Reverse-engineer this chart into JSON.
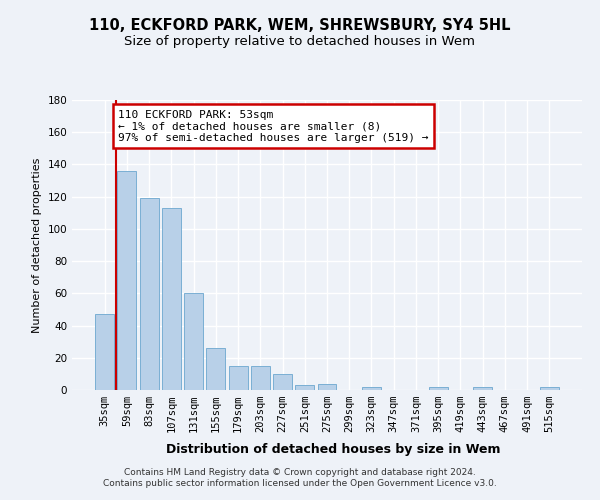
{
  "title": "110, ECKFORD PARK, WEM, SHREWSBURY, SY4 5HL",
  "subtitle": "Size of property relative to detached houses in Wem",
  "xlabel": "Distribution of detached houses by size in Wem",
  "ylabel": "Number of detached properties",
  "bar_labels": [
    "35sqm",
    "59sqm",
    "83sqm",
    "107sqm",
    "131sqm",
    "155sqm",
    "179sqm",
    "203sqm",
    "227sqm",
    "251sqm",
    "275sqm",
    "299sqm",
    "323sqm",
    "347sqm",
    "371sqm",
    "395sqm",
    "419sqm",
    "443sqm",
    "467sqm",
    "491sqm",
    "515sqm"
  ],
  "bar_values": [
    47,
    136,
    119,
    113,
    60,
    26,
    15,
    15,
    10,
    3,
    4,
    0,
    2,
    0,
    0,
    2,
    0,
    2,
    0,
    0,
    2
  ],
  "bar_color": "#b8d0e8",
  "bar_edge_color": "#7aafd4",
  "ylim": [
    0,
    180
  ],
  "yticks": [
    0,
    20,
    40,
    60,
    80,
    100,
    120,
    140,
    160,
    180
  ],
  "annotation_text_line1": "110 ECKFORD PARK: 53sqm",
  "annotation_text_line2": "← 1% of detached houses are smaller (8)",
  "annotation_text_line3": "97% of semi-detached houses are larger (519) →",
  "annotation_box_color": "#cc0000",
  "footnote": "Contains HM Land Registry data © Crown copyright and database right 2024.\nContains public sector information licensed under the Open Government Licence v3.0.",
  "background_color": "#eef2f8",
  "grid_color": "#ffffff",
  "title_fontsize": 10.5,
  "subtitle_fontsize": 9.5,
  "ylabel_fontsize": 8,
  "xlabel_fontsize": 9,
  "tick_fontsize": 7.5,
  "annot_fontsize": 8,
  "footnote_fontsize": 6.5
}
